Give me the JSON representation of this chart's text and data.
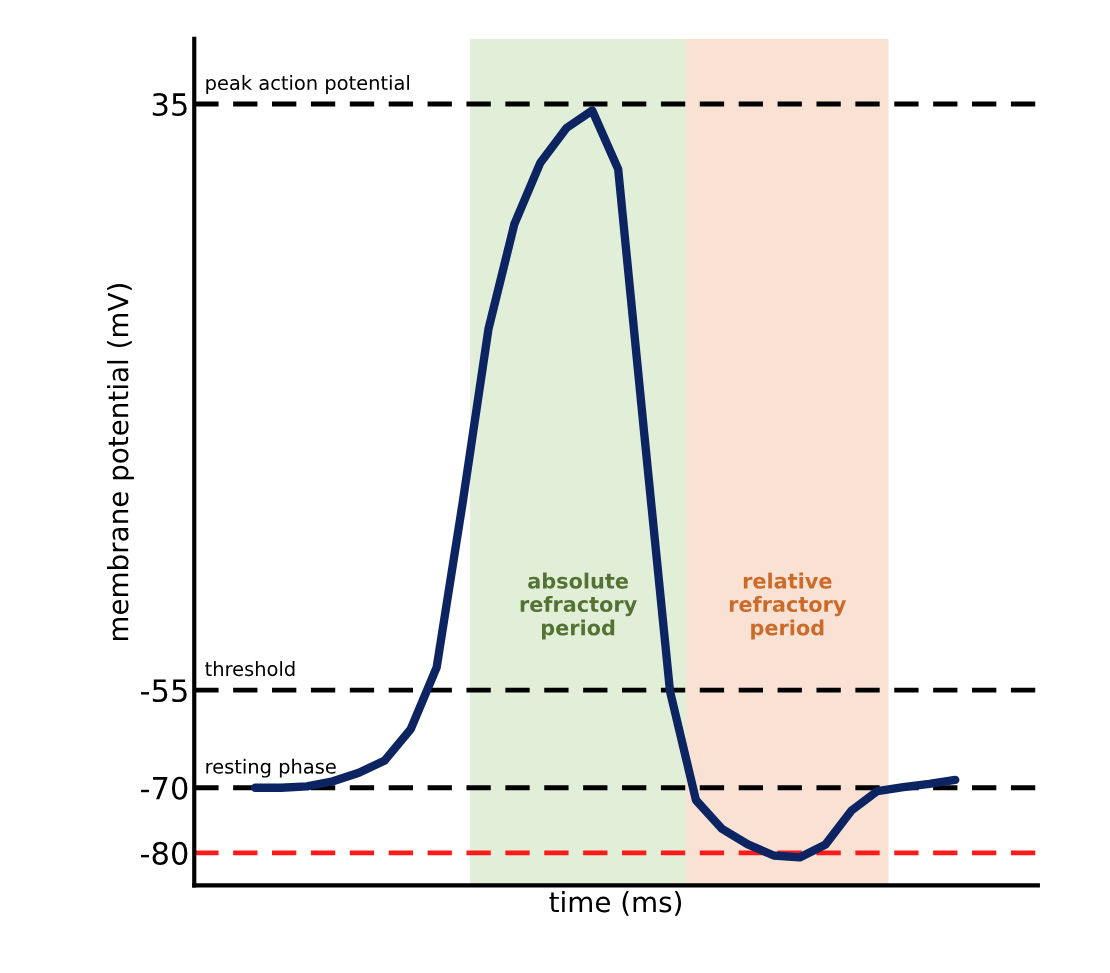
{
  "chart_data": {
    "type": "line",
    "xlabel": "time (ms)",
    "ylabel": "membrane potential (mV)",
    "categories": [
      null,
      null,
      null,
      null,
      null,
      null,
      null,
      null,
      null,
      null,
      null,
      null,
      null,
      null,
      null,
      null,
      null,
      null,
      null,
      null,
      null,
      null,
      null,
      null,
      null,
      null,
      null,
      null
    ],
    "ylim": [
      -85,
      45
    ],
    "yticks": [
      35,
      -55,
      -70,
      -80
    ],
    "tick_labels": "y",
    "grid": false,
    "series": [
      {
        "color": "#0c2461",
        "values": [
          -70,
          -70,
          -69.8,
          -69,
          -67.7,
          -65.8,
          -61,
          -51.5,
          -26.3,
          0.5,
          16.6,
          26,
          31.3,
          34,
          25,
          -15.4,
          -55.2,
          -71.9,
          -76.3,
          -78.7,
          -80.4,
          -80.7,
          -78.7,
          -73.5,
          -70.5,
          -69.9,
          -69.4,
          -68.8
        ]
      }
    ],
    "ref_lines": [
      {
        "axis": "y",
        "value": 35,
        "label": "peak action potential",
        "color": "#000000",
        "line_style": "dashed"
      },
      {
        "axis": "y",
        "value": -55,
        "label": "threshold",
        "color": "#000000",
        "line_style": "dashed"
      },
      {
        "axis": "y",
        "value": -70,
        "label": "resting phase",
        "color": "#000000",
        "line_style": "dashed"
      },
      {
        "axis": "y",
        "value": -80,
        "color": "#ff1a1a",
        "line_style": "dashed"
      }
    ],
    "annotations": [
      "absolute\nrefractory\nperiod",
      "relative\nrefractory\nperiod"
    ]
  }
}
